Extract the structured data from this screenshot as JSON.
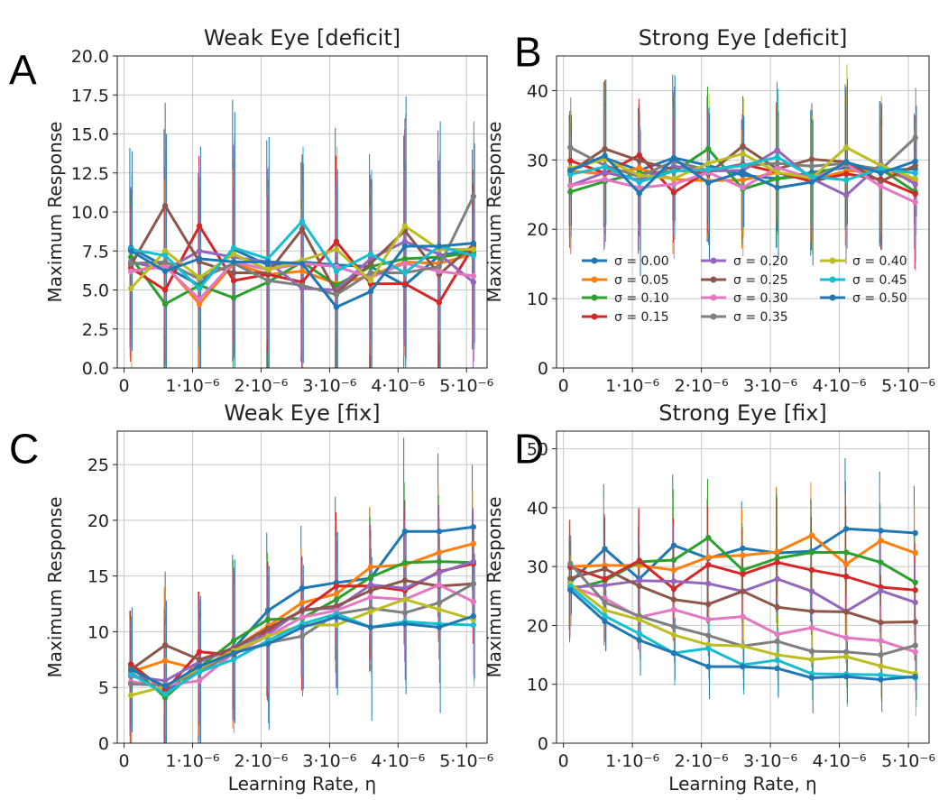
{
  "figure": {
    "xlabel": "Learning Rate, η",
    "ylabel": "Maximum Response"
  },
  "legend": {
    "sigma_prefix": "σ = "
  },
  "colors": [
    "#1f77b4",
    "#ff7f0e",
    "#2ca02c",
    "#d62728",
    "#9467bd",
    "#8c564b",
    "#e377c2",
    "#7f7f7f",
    "#bcbd22",
    "#17becf",
    "#1f77b4"
  ],
  "chart_data": [
    {
      "letter": "A",
      "type": "line",
      "title": "Weak Eye [deficit]",
      "xticks": [
        "0",
        "1·10⁻⁶",
        "2·10⁻⁶",
        "3·10⁻⁶",
        "4·10⁻⁶",
        "5·10⁻⁶"
      ],
      "x": [
        1e-07,
        6e-07,
        1.1e-06,
        1.6e-06,
        2.1e-06,
        2.6e-06,
        3.1e-06,
        3.6e-06,
        4.1e-06,
        4.6e-06,
        5.1e-06
      ],
      "yticks": [
        "0.0",
        "2.5",
        "5.0",
        "7.5",
        "10.0",
        "12.5",
        "15.0",
        "17.5",
        "20.0"
      ],
      "ylim": [
        0,
        20
      ],
      "grid": true,
      "legend": false,
      "series": [
        {
          "name": "0.00",
          "values": [
            7.7,
            6.5,
            5.3,
            7.6,
            6.6,
            6.8,
            6.6,
            6.5,
            5.3,
            7.2,
            7.6
          ],
          "err": 8
        },
        {
          "name": "0.05",
          "values": [
            6.2,
            6.6,
            4.1,
            6.7,
            6.0,
            6.2,
            5.4,
            5.9,
            6.8,
            6.7,
            7.3
          ],
          "err": 5
        },
        {
          "name": "0.10",
          "values": [
            7.1,
            4.1,
            5.3,
            4.5,
            5.5,
            6.8,
            5.3,
            6.5,
            7.0,
            7.1,
            7.4
          ],
          "err": 5
        },
        {
          "name": "0.15",
          "values": [
            6.4,
            5.0,
            9.1,
            5.6,
            6.0,
            5.5,
            8.1,
            5.4,
            5.4,
            4.2,
            7.8
          ],
          "err": 5
        },
        {
          "name": "0.20",
          "values": [
            6.8,
            6.3,
            7.5,
            7.1,
            6.8,
            5.1,
            5.0,
            7.0,
            8.1,
            7.3,
            5.5
          ],
          "err": 6
        },
        {
          "name": "0.25",
          "values": [
            6.6,
            10.4,
            6.8,
            6.1,
            6.1,
            8.9,
            4.8,
            6.7,
            8.8,
            6.0,
            7.9
          ],
          "err": 6
        },
        {
          "name": "0.30",
          "values": [
            6.2,
            6.5,
            4.4,
            6.8,
            6.3,
            6.7,
            6.5,
            5.8,
            6.7,
            6.2,
            5.9
          ],
          "err": 5
        },
        {
          "name": "0.35",
          "values": [
            6.7,
            6.8,
            5.7,
            6.7,
            5.6,
            5.3,
            4.7,
            6.1,
            6.1,
            6.5,
            11.0
          ],
          "err": 6
        },
        {
          "name": "0.40",
          "values": [
            5.1,
            7.5,
            5.8,
            7.3,
            6.3,
            6.9,
            7.6,
            5.6,
            9.1,
            7.6,
            7.6
          ],
          "err": 6
        },
        {
          "name": "0.45",
          "values": [
            7.6,
            7.2,
            5.1,
            7.7,
            7.0,
            9.4,
            6.2,
            7.3,
            6.1,
            7.8,
            7.2
          ],
          "err": 6
        },
        {
          "name": "0.50",
          "values": [
            7.5,
            6.2,
            7.0,
            6.8,
            6.8,
            6.7,
            3.9,
            4.9,
            7.8,
            7.8,
            8.0
          ],
          "err": 8
        }
      ]
    },
    {
      "letter": "B",
      "type": "line",
      "title": "Strong Eye [deficit]",
      "xticks": [
        "0",
        "1·10⁻⁶",
        "2·10⁻⁶",
        "3·10⁻⁶",
        "4·10⁻⁶",
        "5·10⁻⁶"
      ],
      "x": [
        1e-07,
        6e-07,
        1.1e-06,
        1.6e-06,
        2.1e-06,
        2.6e-06,
        3.1e-06,
        3.6e-06,
        4.1e-06,
        4.6e-06,
        5.1e-06
      ],
      "yticks": [
        "0",
        "10",
        "20",
        "30",
        "40"
      ],
      "ylim": [
        0,
        45
      ],
      "grid": true,
      "legend": true,
      "legend_loc": "lower-center",
      "series": [
        {
          "name": "0.00",
          "values": [
            28.5,
            30.3,
            28.5,
            30.3,
            29.2,
            27.8,
            27.3,
            28.2,
            28.9,
            28.5,
            28.7
          ],
          "err": 10
        },
        {
          "name": "0.05",
          "values": [
            28.4,
            28.0,
            28.8,
            27.2,
            27.0,
            27.1,
            28.2,
            27.1,
            28.4,
            28.4,
            27.1
          ],
          "err": 9
        },
        {
          "name": "0.10",
          "values": [
            25.4,
            26.9,
            28.1,
            28.3,
            31.6,
            25.8,
            27.3,
            27.8,
            29.3,
            28.7,
            25.4
          ],
          "err": 9
        },
        {
          "name": "0.15",
          "values": [
            29.9,
            28.1,
            30.7,
            25.3,
            28.4,
            29.4,
            28.2,
            26.9,
            28.0,
            27.2,
            25.1
          ],
          "err": 9
        },
        {
          "name": "0.20",
          "values": [
            26.3,
            28.2,
            27.1,
            29.1,
            28.4,
            28.5,
            31.4,
            27.3,
            24.9,
            29.4,
            26.5
          ],
          "err": 9
        },
        {
          "name": "0.25",
          "values": [
            28.3,
            31.6,
            29.9,
            28.6,
            28.0,
            32.0,
            28.7,
            30.1,
            29.7,
            26.9,
            29.2
          ],
          "err": 9
        },
        {
          "name": "0.30",
          "values": [
            26.3,
            27.2,
            26.0,
            26.5,
            28.2,
            26.0,
            28.9,
            27.3,
            29.4,
            26.2,
            23.9
          ],
          "err": 9
        },
        {
          "name": "0.35",
          "values": [
            31.8,
            29.2,
            27.6,
            29.8,
            28.5,
            29.2,
            29.5,
            29.1,
            29.5,
            28.6,
            33.2
          ],
          "err": 9
        },
        {
          "name": "0.40",
          "values": [
            28.8,
            30.1,
            27.8,
            27.3,
            29.5,
            30.9,
            28.2,
            27.4,
            31.8,
            29.2,
            27.3
          ],
          "err": 10
        },
        {
          "name": "0.45",
          "values": [
            27.9,
            29.0,
            26.8,
            28.4,
            28.6,
            29.2,
            30.4,
            27.6,
            27.1,
            28.7,
            28.1
          ],
          "err": 9
        },
        {
          "name": "0.50",
          "values": [
            28.5,
            30.6,
            25.2,
            30.2,
            26.7,
            28.3,
            26.0,
            26.8,
            29.7,
            28.1,
            29.8
          ],
          "err": 10
        }
      ]
    },
    {
      "letter": "C",
      "type": "line",
      "title": "Weak Eye [fix]",
      "xticks": [
        "0",
        "1·10⁻⁶",
        "2·10⁻⁶",
        "3·10⁻⁶",
        "4·10⁻⁶",
        "5·10⁻⁶"
      ],
      "x": [
        1e-07,
        6e-07,
        1.1e-06,
        1.6e-06,
        2.1e-06,
        2.6e-06,
        3.1e-06,
        3.6e-06,
        4.1e-06,
        4.6e-06,
        5.1e-06
      ],
      "yticks": [
        "0",
        "5",
        "10",
        "15",
        "20",
        "25"
      ],
      "ylim": [
        0,
        28
      ],
      "grid": true,
      "legend": false,
      "series": [
        {
          "name": "0.00",
          "values": [
            6.3,
            4.4,
            7.3,
            8.5,
            11.9,
            13.9,
            14.4,
            14.8,
            19.0,
            19.0,
            19.4
          ],
          "err": 7
        },
        {
          "name": "0.05",
          "values": [
            6.4,
            7.4,
            6.6,
            8.5,
            10.5,
            12.6,
            13.4,
            15.8,
            16.0,
            17.1,
            17.9
          ],
          "err": 6
        },
        {
          "name": "0.10",
          "values": [
            6.9,
            4.1,
            6.8,
            9.2,
            11.1,
            11.2,
            12.9,
            14.9,
            16.2,
            16.3,
            16.2
          ],
          "err": 6
        },
        {
          "name": "0.15",
          "values": [
            7.1,
            4.7,
            8.2,
            7.9,
            10.1,
            11.9,
            14.1,
            14.1,
            13.7,
            15.4,
            16.1
          ],
          "err": 6
        },
        {
          "name": "0.20",
          "values": [
            6.0,
            5.6,
            7.3,
            8.6,
            9.8,
            12.0,
            12.1,
            14.2,
            13.9,
            15.3,
            16.3
          ],
          "err": 6
        },
        {
          "name": "0.25",
          "values": [
            6.6,
            8.8,
            7.5,
            8.5,
            10.3,
            11.9,
            12.3,
            13.7,
            14.6,
            14.1,
            14.3
          ],
          "err": 6
        },
        {
          "name": "0.30",
          "values": [
            5.5,
            5.2,
            5.6,
            8.1,
            9.6,
            11.3,
            11.9,
            13.1,
            12.9,
            14.2,
            12.7
          ],
          "err": 6
        },
        {
          "name": "0.35",
          "values": [
            5.3,
            5.2,
            6.4,
            8.1,
            9.0,
            9.6,
            11.6,
            12.1,
            11.7,
            12.6,
            14.3
          ],
          "err": 6
        },
        {
          "name": "0.40",
          "values": [
            4.3,
            5.1,
            6.7,
            8.3,
            9.6,
            10.6,
            10.6,
            11.8,
            12.9,
            12.0,
            11.1
          ],
          "err": 5
        },
        {
          "name": "0.45",
          "values": [
            6.2,
            4.4,
            6.4,
            7.5,
            9.2,
            10.7,
            11.6,
            10.4,
            10.9,
            10.7,
            10.6
          ],
          "err": 5
        },
        {
          "name": "0.50",
          "values": [
            6.6,
            5.1,
            6.9,
            8.1,
            8.9,
            10.4,
            11.3,
            10.4,
            10.7,
            10.4,
            11.4
          ],
          "err": 7
        }
      ]
    },
    {
      "letter": "D",
      "type": "line",
      "title": "Strong Eye [fix]",
      "xticks": [
        "0",
        "1·10⁻⁶",
        "2·10⁻⁶",
        "3·10⁻⁶",
        "4·10⁻⁶",
        "5·10⁻⁶"
      ],
      "x": [
        1e-07,
        6e-07,
        1.1e-06,
        1.6e-06,
        2.1e-06,
        2.6e-06,
        3.1e-06,
        3.6e-06,
        4.1e-06,
        4.6e-06,
        5.1e-06
      ],
      "yticks": [
        "0",
        "10",
        "20",
        "30",
        "40",
        "50"
      ],
      "ylim": [
        0,
        53
      ],
      "grid": true,
      "legend": false,
      "series": [
        {
          "name": "0.00",
          "values": [
            27.3,
            33.0,
            27.9,
            33.6,
            31.4,
            33.1,
            32.3,
            32.6,
            36.4,
            36.1,
            35.7
          ],
          "err": 10
        },
        {
          "name": "0.05",
          "values": [
            30.0,
            30.2,
            30.2,
            29.4,
            31.6,
            31.9,
            32.5,
            35.3,
            30.4,
            34.4,
            32.3
          ],
          "err": 10
        },
        {
          "name": "0.10",
          "values": [
            26.1,
            27.6,
            30.8,
            31.1,
            34.9,
            29.4,
            31.4,
            32.4,
            32.4,
            30.7,
            27.3
          ],
          "err": 10
        },
        {
          "name": "0.15",
          "values": [
            29.9,
            27.9,
            31.0,
            26.2,
            30.3,
            28.7,
            30.7,
            29.4,
            28.3,
            26.5,
            26.0
          ],
          "err": 10
        },
        {
          "name": "0.20",
          "values": [
            26.5,
            26.8,
            27.6,
            27.5,
            27.1,
            25.8,
            27.9,
            25.8,
            22.4,
            25.9,
            23.9
          ],
          "err": 8
        },
        {
          "name": "0.25",
          "values": [
            28.0,
            29.6,
            26.7,
            24.4,
            23.6,
            25.8,
            23.1,
            22.4,
            22.3,
            20.5,
            20.6
          ],
          "err": 8
        },
        {
          "name": "0.30",
          "values": [
            26.6,
            24.6,
            21.4,
            22.7,
            21.0,
            21.5,
            18.5,
            19.6,
            17.9,
            17.4,
            15.5
          ],
          "err": 6
        },
        {
          "name": "0.35",
          "values": [
            30.5,
            23.9,
            21.6,
            19.8,
            18.3,
            16.5,
            17.3,
            15.6,
            15.5,
            15.0,
            16.6
          ],
          "err": 6
        },
        {
          "name": "0.40",
          "values": [
            27.1,
            22.6,
            21.0,
            18.4,
            16.7,
            16.5,
            15.0,
            14.2,
            14.7,
            13.1,
            11.8
          ],
          "err": 6
        },
        {
          "name": "0.45",
          "values": [
            26.6,
            21.6,
            18.6,
            15.3,
            16.1,
            13.3,
            14.1,
            11.8,
            11.7,
            11.6,
            11.1
          ],
          "err": 5
        },
        {
          "name": "0.50",
          "values": [
            26.0,
            20.7,
            17.5,
            15.3,
            13.0,
            13.0,
            12.7,
            11.1,
            11.3,
            10.8,
            11.3
          ],
          "err": 5
        }
      ]
    }
  ]
}
